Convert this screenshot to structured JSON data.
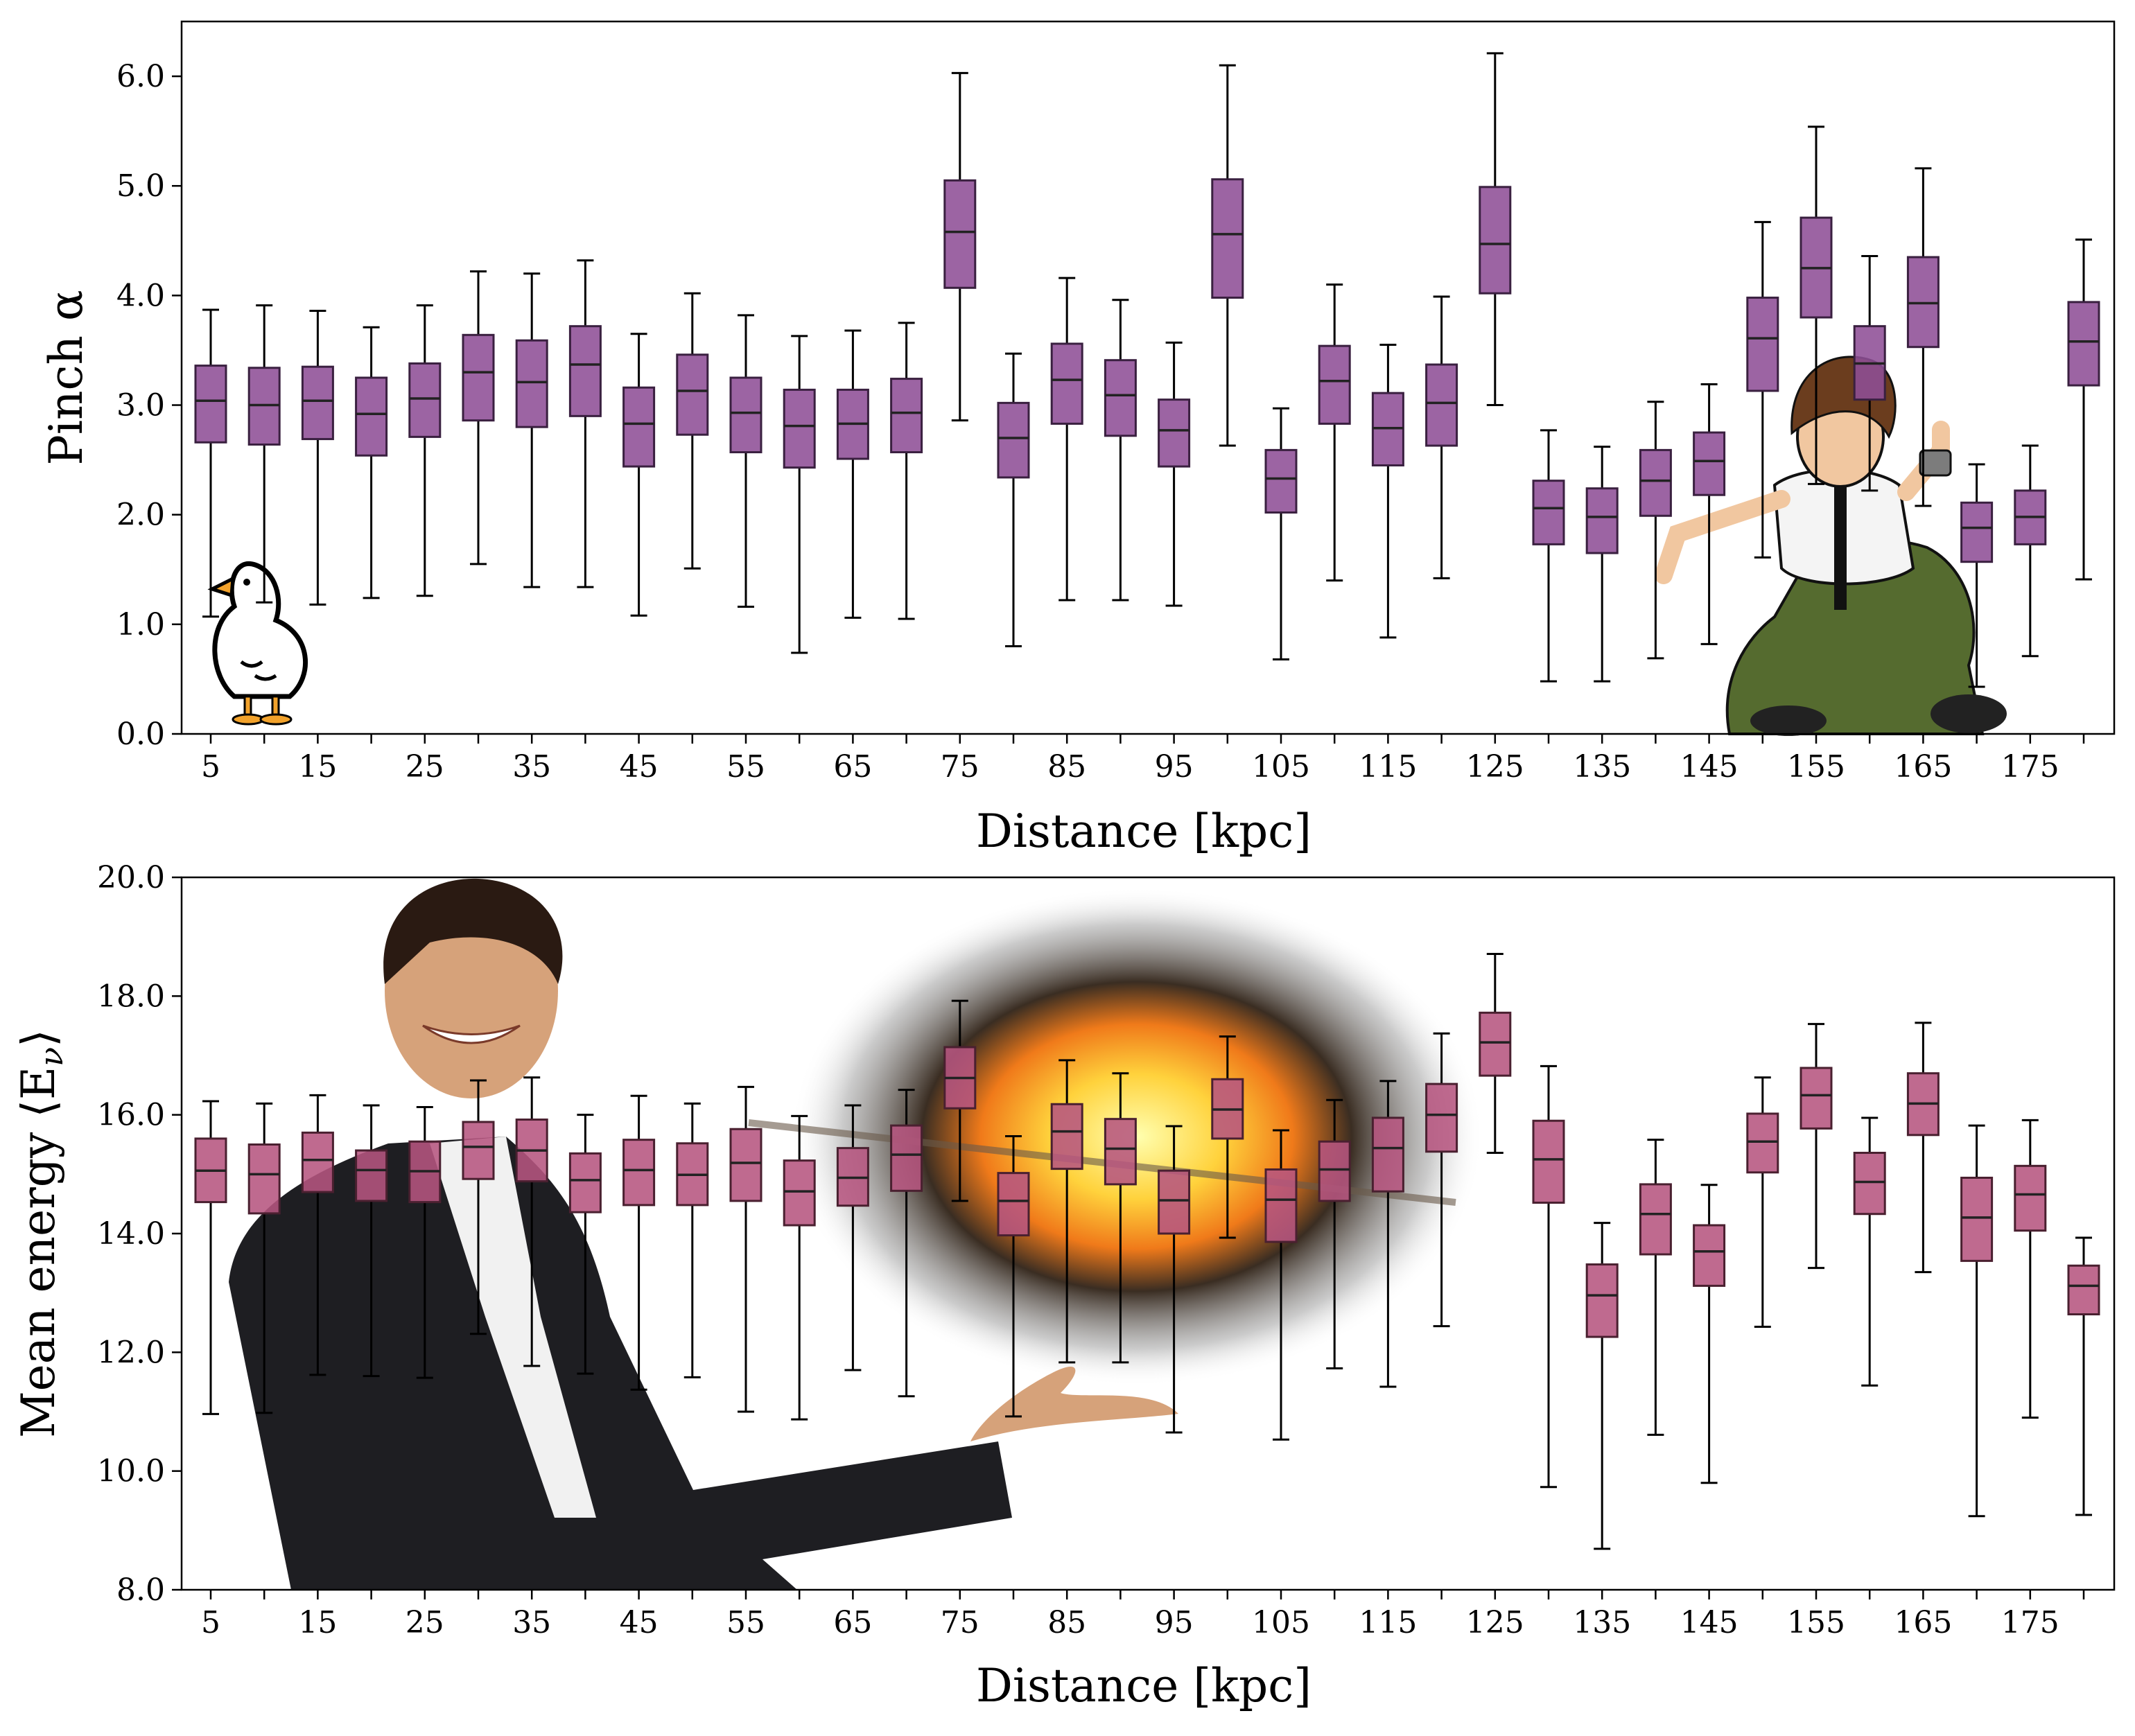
{
  "colors": {
    "top_box_fill": "#8e4f96",
    "bottom_box_fill": "#b65580",
    "axis": "#000000"
  },
  "chart_data": [
    {
      "type": "box",
      "xlabel": "Distance [kpc]",
      "ylabel": "Pinch α",
      "ylim": [
        0.0,
        6.5
      ],
      "yticks": [
        "0.0",
        "1.0",
        "2.0",
        "3.0",
        "4.0",
        "5.0",
        "6.0"
      ],
      "xtick_labels": [
        "5",
        "15",
        "25",
        "35",
        "45",
        "55",
        "65",
        "75",
        "85",
        "95",
        "105",
        "115",
        "125",
        "135",
        "145",
        "155",
        "165",
        "175"
      ],
      "distances": [
        5,
        10,
        15,
        20,
        25,
        30,
        35,
        40,
        45,
        50,
        55,
        60,
        65,
        70,
        75,
        80,
        85,
        90,
        95,
        100,
        105,
        110,
        115,
        120,
        125,
        130,
        135,
        140,
        145,
        150,
        155,
        160,
        165,
        170,
        175,
        180
      ],
      "boxes": [
        {
          "whislo": 1.07,
          "q1": 2.66,
          "med": 3.04,
          "q3": 3.36,
          "whishi": 3.87
        },
        {
          "whislo": 1.2,
          "q1": 2.64,
          "med": 3.0,
          "q3": 3.34,
          "whishi": 3.91
        },
        {
          "whislo": 1.18,
          "q1": 2.69,
          "med": 3.04,
          "q3": 3.35,
          "whishi": 3.86
        },
        {
          "whislo": 1.24,
          "q1": 2.54,
          "med": 2.92,
          "q3": 3.25,
          "whishi": 3.71
        },
        {
          "whislo": 1.26,
          "q1": 2.71,
          "med": 3.06,
          "q3": 3.38,
          "whishi": 3.91
        },
        {
          "whislo": 1.55,
          "q1": 2.86,
          "med": 3.3,
          "q3": 3.64,
          "whishi": 4.22
        },
        {
          "whislo": 1.34,
          "q1": 2.8,
          "med": 3.21,
          "q3": 3.59,
          "whishi": 4.2
        },
        {
          "whislo": 1.34,
          "q1": 2.9,
          "med": 3.37,
          "q3": 3.72,
          "whishi": 4.32
        },
        {
          "whislo": 1.08,
          "q1": 2.44,
          "med": 2.83,
          "q3": 3.16,
          "whishi": 3.65
        },
        {
          "whislo": 1.51,
          "q1": 2.73,
          "med": 3.13,
          "q3": 3.46,
          "whishi": 4.02
        },
        {
          "whislo": 1.16,
          "q1": 2.57,
          "med": 2.93,
          "q3": 3.25,
          "whishi": 3.82
        },
        {
          "whislo": 0.74,
          "q1": 2.43,
          "med": 2.81,
          "q3": 3.14,
          "whishi": 3.63
        },
        {
          "whislo": 1.06,
          "q1": 2.51,
          "med": 2.83,
          "q3": 3.14,
          "whishi": 3.68
        },
        {
          "whislo": 1.05,
          "q1": 2.57,
          "med": 2.93,
          "q3": 3.24,
          "whishi": 3.75
        },
        {
          "whislo": 2.86,
          "q1": 4.07,
          "med": 4.58,
          "q3": 5.05,
          "whishi": 6.03
        },
        {
          "whislo": 0.8,
          "q1": 2.34,
          "med": 2.7,
          "q3": 3.02,
          "whishi": 3.47
        },
        {
          "whislo": 1.22,
          "q1": 2.83,
          "med": 3.23,
          "q3": 3.56,
          "whishi": 4.16
        },
        {
          "whislo": 1.22,
          "q1": 2.72,
          "med": 3.09,
          "q3": 3.41,
          "whishi": 3.96
        },
        {
          "whislo": 1.17,
          "q1": 2.44,
          "med": 2.77,
          "q3": 3.05,
          "whishi": 3.57
        },
        {
          "whislo": 2.63,
          "q1": 3.98,
          "med": 4.56,
          "q3": 5.06,
          "whishi": 6.1
        },
        {
          "whislo": 0.68,
          "q1": 2.02,
          "med": 2.33,
          "q3": 2.59,
          "whishi": 2.97
        },
        {
          "whislo": 1.4,
          "q1": 2.83,
          "med": 3.22,
          "q3": 3.54,
          "whishi": 4.1
        },
        {
          "whislo": 0.88,
          "q1": 2.45,
          "med": 2.79,
          "q3": 3.11,
          "whishi": 3.55
        },
        {
          "whislo": 1.42,
          "q1": 2.63,
          "med": 3.02,
          "q3": 3.37,
          "whishi": 3.99
        },
        {
          "whislo": 3.0,
          "q1": 4.02,
          "med": 4.47,
          "q3": 4.99,
          "whishi": 6.21
        },
        {
          "whislo": 0.48,
          "q1": 1.73,
          "med": 2.06,
          "q3": 2.31,
          "whishi": 2.77
        },
        {
          "whislo": 0.48,
          "q1": 1.65,
          "med": 1.98,
          "q3": 2.24,
          "whishi": 2.62
        },
        {
          "whislo": 0.69,
          "q1": 1.99,
          "med": 2.31,
          "q3": 2.59,
          "whishi": 3.03
        },
        {
          "whislo": 0.82,
          "q1": 2.18,
          "med": 2.49,
          "q3": 2.75,
          "whishi": 3.19
        },
        {
          "whislo": 1.61,
          "q1": 3.13,
          "med": 3.61,
          "q3": 3.98,
          "whishi": 4.67
        },
        {
          "whislo": 2.28,
          "q1": 3.8,
          "med": 4.25,
          "q3": 4.71,
          "whishi": 5.54
        },
        {
          "whislo": 2.22,
          "q1": 3.05,
          "med": 3.38,
          "q3": 3.72,
          "whishi": 4.36
        },
        {
          "whislo": 2.08,
          "q1": 3.53,
          "med": 3.93,
          "q3": 4.35,
          "whishi": 5.16
        },
        {
          "whislo": 0.43,
          "q1": 1.57,
          "med": 1.88,
          "q3": 2.11,
          "whishi": 2.46
        },
        {
          "whislo": 0.71,
          "q1": 1.73,
          "med": 1.98,
          "q3": 2.22,
          "whishi": 2.63
        },
        {
          "whislo": 1.41,
          "q1": 3.18,
          "med": 3.58,
          "q3": 3.94,
          "whishi": 4.51
        }
      ]
    },
    {
      "type": "box",
      "xlabel": "Distance [kpc]",
      "ylabel": "Mean energy ⟨E_ν⟩",
      "ylabel_main": "Mean energy ⟨E",
      "ylabel_sub": "ν",
      "ylabel_close": "⟩",
      "ylim": [
        8.0,
        20.0
      ],
      "yticks": [
        "8.0",
        "10.0",
        "12.0",
        "14.0",
        "16.0",
        "18.0",
        "20.0"
      ],
      "xtick_labels": [
        "5",
        "15",
        "25",
        "35",
        "45",
        "55",
        "65",
        "75",
        "85",
        "95",
        "105",
        "115",
        "125",
        "135",
        "145",
        "155",
        "165",
        "175"
      ],
      "distances": [
        5,
        10,
        15,
        20,
        25,
        30,
        35,
        40,
        45,
        50,
        55,
        60,
        65,
        70,
        75,
        80,
        85,
        90,
        95,
        100,
        105,
        110,
        115,
        120,
        125,
        130,
        135,
        140,
        145,
        150,
        155,
        160,
        165,
        170,
        175,
        180
      ],
      "boxes": [
        {
          "whislo": 10.96,
          "q1": 14.53,
          "med": 15.06,
          "q3": 15.6,
          "whishi": 16.23
        },
        {
          "whislo": 10.98,
          "q1": 14.34,
          "med": 15.0,
          "q3": 15.5,
          "whishi": 16.19
        },
        {
          "whislo": 11.62,
          "q1": 14.7,
          "med": 15.24,
          "q3": 15.7,
          "whishi": 16.33
        },
        {
          "whislo": 11.6,
          "q1": 14.55,
          "med": 15.07,
          "q3": 15.4,
          "whishi": 16.16
        },
        {
          "whislo": 11.57,
          "q1": 14.53,
          "med": 15.05,
          "q3": 15.55,
          "whishi": 16.13
        },
        {
          "whislo": 12.31,
          "q1": 14.92,
          "med": 15.46,
          "q3": 15.88,
          "whishi": 16.58
        },
        {
          "whislo": 11.77,
          "q1": 14.88,
          "med": 15.4,
          "q3": 15.92,
          "whishi": 16.63
        },
        {
          "whislo": 11.64,
          "q1": 14.36,
          "med": 14.9,
          "q3": 15.35,
          "whishi": 16.0
        },
        {
          "whislo": 11.37,
          "q1": 14.48,
          "med": 15.07,
          "q3": 15.58,
          "whishi": 16.32
        },
        {
          "whislo": 11.58,
          "q1": 14.48,
          "med": 14.99,
          "q3": 15.52,
          "whishi": 16.19
        },
        {
          "whislo": 11.0,
          "q1": 14.55,
          "med": 15.19,
          "q3": 15.76,
          "whishi": 16.47
        },
        {
          "whislo": 10.87,
          "q1": 14.14,
          "med": 14.71,
          "q3": 15.23,
          "whishi": 15.98
        },
        {
          "whislo": 11.7,
          "q1": 14.47,
          "med": 14.94,
          "q3": 15.44,
          "whishi": 16.16
        },
        {
          "whislo": 11.26,
          "q1": 14.72,
          "med": 15.33,
          "q3": 15.82,
          "whishi": 16.42
        },
        {
          "whislo": 14.55,
          "q1": 16.11,
          "med": 16.62,
          "q3": 17.14,
          "whishi": 17.92
        },
        {
          "whislo": 10.92,
          "q1": 13.97,
          "med": 14.55,
          "q3": 15.02,
          "whishi": 15.64
        },
        {
          "whislo": 11.83,
          "q1": 15.09,
          "med": 15.72,
          "q3": 16.18,
          "whishi": 16.92
        },
        {
          "whislo": 11.83,
          "q1": 14.83,
          "med": 15.43,
          "q3": 15.93,
          "whishi": 16.7
        },
        {
          "whislo": 10.65,
          "q1": 14.0,
          "med": 14.56,
          "q3": 15.06,
          "whishi": 15.81
        },
        {
          "whislo": 13.93,
          "q1": 15.6,
          "med": 16.09,
          "q3": 16.6,
          "whishi": 17.32
        },
        {
          "whislo": 10.53,
          "q1": 13.86,
          "med": 14.57,
          "q3": 15.08,
          "whishi": 15.74
        },
        {
          "whislo": 11.73,
          "q1": 14.55,
          "med": 15.08,
          "q3": 15.55,
          "whishi": 16.25
        },
        {
          "whislo": 11.42,
          "q1": 14.71,
          "med": 15.44,
          "q3": 15.95,
          "whishi": 16.57
        },
        {
          "whislo": 12.44,
          "q1": 15.38,
          "med": 16.0,
          "q3": 16.52,
          "whishi": 17.37
        },
        {
          "whislo": 15.36,
          "q1": 16.66,
          "med": 17.22,
          "q3": 17.72,
          "whishi": 18.71
        },
        {
          "whislo": 9.73,
          "q1": 14.52,
          "med": 15.25,
          "q3": 15.9,
          "whishi": 16.82
        },
        {
          "whislo": 8.69,
          "q1": 12.26,
          "med": 12.96,
          "q3": 13.48,
          "whishi": 14.18
        },
        {
          "whislo": 10.61,
          "q1": 13.65,
          "med": 14.33,
          "q3": 14.83,
          "whishi": 15.58
        },
        {
          "whislo": 9.8,
          "q1": 13.12,
          "med": 13.7,
          "q3": 14.14,
          "whishi": 14.82
        },
        {
          "whislo": 12.43,
          "q1": 15.03,
          "med": 15.55,
          "q3": 16.02,
          "whishi": 16.63
        },
        {
          "whislo": 13.42,
          "q1": 15.77,
          "med": 16.33,
          "q3": 16.79,
          "whishi": 17.53
        },
        {
          "whislo": 11.44,
          "q1": 14.33,
          "med": 14.87,
          "q3": 15.36,
          "whishi": 15.95
        },
        {
          "whislo": 13.35,
          "q1": 15.66,
          "med": 16.19,
          "q3": 16.7,
          "whishi": 17.55
        },
        {
          "whislo": 9.24,
          "q1": 13.54,
          "med": 14.27,
          "q3": 14.94,
          "whishi": 15.82
        },
        {
          "whislo": 10.9,
          "q1": 14.05,
          "med": 14.66,
          "q3": 15.14,
          "whishi": 15.91
        },
        {
          "whislo": 9.26,
          "q1": 12.64,
          "med": 13.12,
          "q3": 13.46,
          "whishi": 13.93
        }
      ]
    }
  ]
}
